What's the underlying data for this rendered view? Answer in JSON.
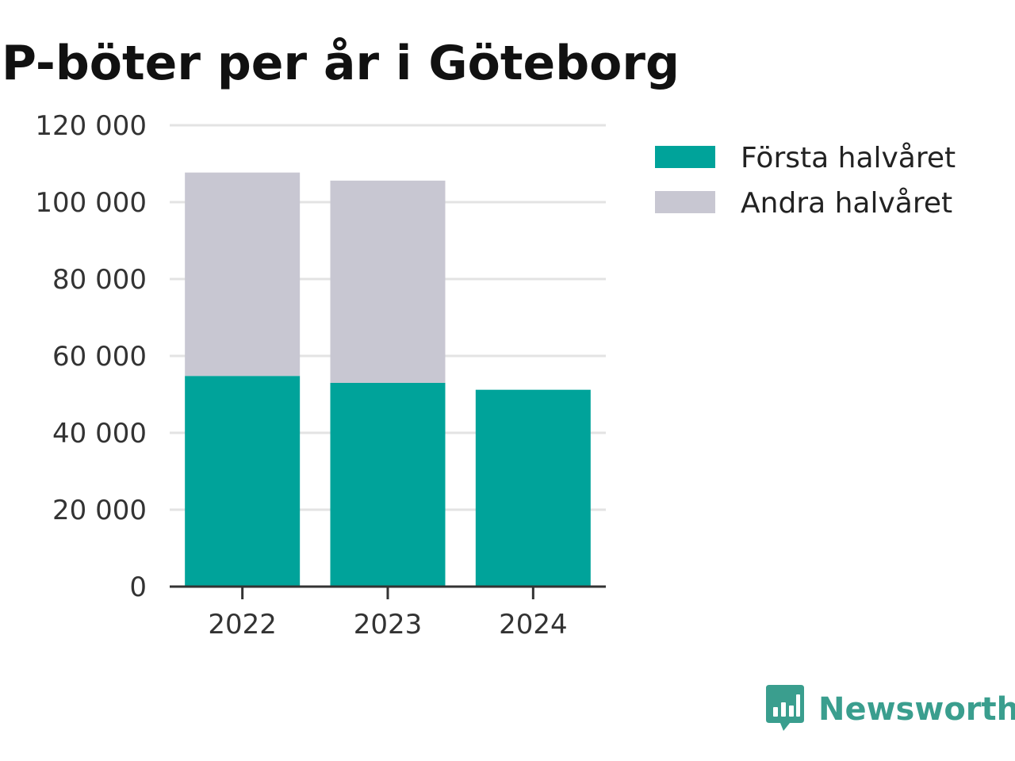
{
  "chart_data": {
    "type": "bar",
    "stacked": true,
    "title": "P-böter per år i Göteborg",
    "xlabel": "",
    "ylabel": "",
    "categories": [
      "2022",
      "2023",
      "2024"
    ],
    "series": [
      {
        "name": "Första halvåret",
        "color": "#00a39a",
        "values": [
          54800,
          53000,
          51200
        ]
      },
      {
        "name": "Andra halvåret",
        "color": "#c8c7d2",
        "values": [
          52900,
          52600,
          0
        ]
      }
    ],
    "ylim": [
      0,
      120000
    ],
    "yticks": [
      0,
      20000,
      40000,
      60000,
      80000,
      100000,
      120000
    ],
    "ytick_labels": [
      "0",
      "20 000",
      "40 000",
      "60 000",
      "80 000",
      "100 000",
      "120 000"
    ],
    "grid": true,
    "legend_position": "right-top"
  },
  "branding": {
    "name": "Newsworthy",
    "icon": "newsworthy-logo-icon",
    "color": "#3a9e8e"
  }
}
